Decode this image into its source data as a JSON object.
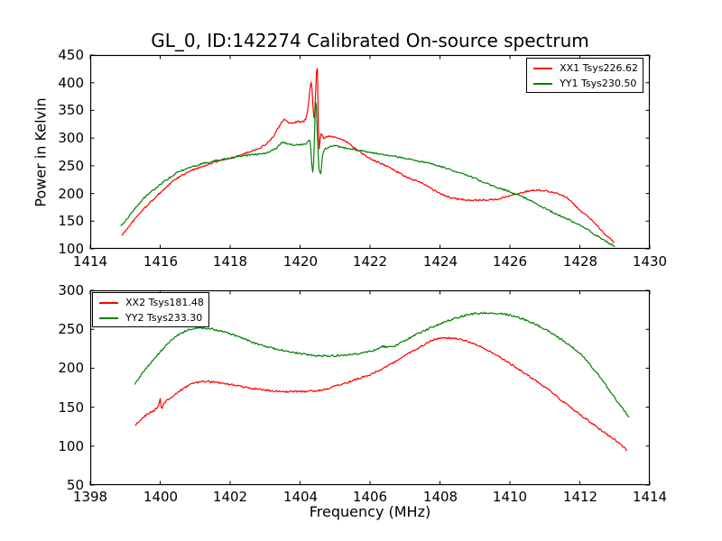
{
  "figure_title": "GL_0, ID:142274 Calibrated On-source spectrum",
  "axis": {
    "xlabel": "Frequency (MHz)",
    "ylabel": "Power in Kelvin"
  },
  "colors": {
    "xx_line": "#ff0000",
    "yy_line": "#008000",
    "axis_color": "#000000",
    "background": "#ffffff"
  },
  "chart_data": [
    {
      "type": "line",
      "subplot": "top",
      "xlim": [
        1414,
        1430
      ],
      "ylim": [
        100,
        450
      ],
      "xticks": [
        1414,
        1416,
        1418,
        1420,
        1422,
        1424,
        1426,
        1428,
        1430
      ],
      "yticks": [
        100,
        150,
        200,
        250,
        300,
        350,
        400,
        450
      ],
      "grid": false,
      "legend": {
        "position": "upper-right",
        "entries": [
          {
            "label": "XX1 Tsys226.62",
            "series": "XX1",
            "tsys": 226.62,
            "color": "#ff0000"
          },
          {
            "label": "YY1 Tsys230.50",
            "series": "YY1",
            "tsys": 230.5,
            "color": "#008000"
          }
        ]
      },
      "series": [
        {
          "name": "XX1",
          "color": "#ff0000",
          "points": [
            [
              1414.9,
              124
            ],
            [
              1415.2,
              148
            ],
            [
              1415.5,
              170
            ],
            [
              1415.8,
              189
            ],
            [
              1416.1,
              207
            ],
            [
              1416.5,
              228
            ],
            [
              1417.0,
              244
            ],
            [
              1417.5,
              255
            ],
            [
              1417.8,
              261
            ],
            [
              1418.0,
              264
            ],
            [
              1418.5,
              274
            ],
            [
              1419.0,
              288
            ],
            [
              1419.25,
              304
            ],
            [
              1419.45,
              326
            ],
            [
              1419.55,
              333
            ],
            [
              1419.65,
              329
            ],
            [
              1419.78,
              326
            ],
            [
              1419.92,
              330
            ],
            [
              1420.05,
              329
            ],
            [
              1420.15,
              333
            ],
            [
              1420.22,
              352
            ],
            [
              1420.32,
              400
            ],
            [
              1420.4,
              335
            ],
            [
              1420.49,
              433
            ],
            [
              1420.54,
              278
            ],
            [
              1420.6,
              308
            ],
            [
              1420.68,
              300
            ],
            [
              1420.82,
              303
            ],
            [
              1421.0,
              302
            ],
            [
              1421.3,
              294
            ],
            [
              1421.7,
              275
            ],
            [
              1422.0,
              263
            ],
            [
              1422.5,
              249
            ],
            [
              1423.0,
              231
            ],
            [
              1423.5,
              218
            ],
            [
              1424.0,
              200
            ],
            [
              1424.5,
              190
            ],
            [
              1425.0,
              188
            ],
            [
              1425.5,
              189
            ],
            [
              1426.0,
              196
            ],
            [
              1426.4,
              203
            ],
            [
              1426.8,
              206
            ],
            [
              1427.1,
              204
            ],
            [
              1427.5,
              197
            ],
            [
              1428.0,
              170
            ],
            [
              1428.4,
              148
            ],
            [
              1428.7,
              128
            ],
            [
              1428.98,
              112
            ]
          ]
        },
        {
          "name": "YY1",
          "color": "#008000",
          "points": [
            [
              1414.87,
              140
            ],
            [
              1415.2,
              166
            ],
            [
              1415.5,
              189
            ],
            [
              1415.8,
              206
            ],
            [
              1416.1,
              221
            ],
            [
              1416.5,
              238
            ],
            [
              1417.0,
              250
            ],
            [
              1417.5,
              258
            ],
            [
              1418.0,
              264
            ],
            [
              1418.5,
              269
            ],
            [
              1419.0,
              273
            ],
            [
              1419.3,
              281
            ],
            [
              1419.5,
              292
            ],
            [
              1419.65,
              290
            ],
            [
              1419.8,
              288
            ],
            [
              1420.0,
              288
            ],
            [
              1420.18,
              290
            ],
            [
              1420.28,
              296
            ],
            [
              1420.34,
              250
            ],
            [
              1420.37,
              238
            ],
            [
              1420.41,
              300
            ],
            [
              1420.45,
              376
            ],
            [
              1420.49,
              310
            ],
            [
              1420.55,
              241
            ],
            [
              1420.59,
              236
            ],
            [
              1420.65,
              272
            ],
            [
              1420.78,
              283
            ],
            [
              1420.95,
              286
            ],
            [
              1421.2,
              283
            ],
            [
              1421.6,
              279
            ],
            [
              1422.0,
              274
            ],
            [
              1422.5,
              269
            ],
            [
              1423.0,
              264
            ],
            [
              1423.5,
              257
            ],
            [
              1424.0,
              249
            ],
            [
              1424.5,
              239
            ],
            [
              1425.0,
              227
            ],
            [
              1425.5,
              214
            ],
            [
              1426.0,
              203
            ],
            [
              1426.5,
              190
            ],
            [
              1427.0,
              173
            ],
            [
              1427.5,
              158
            ],
            [
              1428.0,
              143
            ],
            [
              1428.5,
              123
            ],
            [
              1429.0,
              104
            ]
          ]
        }
      ]
    },
    {
      "type": "line",
      "subplot": "bottom",
      "xlim": [
        1398,
        1414
      ],
      "ylim": [
        50,
        300
      ],
      "xticks": [
        1398,
        1400,
        1402,
        1404,
        1406,
        1408,
        1410,
        1412,
        1414
      ],
      "yticks": [
        50,
        100,
        150,
        200,
        250,
        300
      ],
      "grid": false,
      "legend": {
        "position": "upper-left",
        "entries": [
          {
            "label": "XX2 Tsys181.48",
            "series": "XX2",
            "tsys": 181.48,
            "color": "#ff0000"
          },
          {
            "label": "YY2 Tsys233.30",
            "series": "YY2",
            "tsys": 233.3,
            "color": "#008000"
          }
        ]
      },
      "series": [
        {
          "name": "XX2",
          "color": "#ff0000",
          "points": [
            [
              1399.28,
              127
            ],
            [
              1399.6,
              140
            ],
            [
              1399.94,
              151
            ],
            [
              1400.0,
              160
            ],
            [
              1400.04,
              147
            ],
            [
              1400.1,
              155
            ],
            [
              1400.4,
              165
            ],
            [
              1400.7,
              175
            ],
            [
              1401.0,
              181
            ],
            [
              1401.3,
              183
            ],
            [
              1401.6,
              182
            ],
            [
              1402.0,
              179
            ],
            [
              1402.5,
              175
            ],
            [
              1403.0,
              172
            ],
            [
              1403.5,
              170
            ],
            [
              1404.0,
              170
            ],
            [
              1404.5,
              171
            ],
            [
              1405.0,
              177
            ],
            [
              1405.5,
              184
            ],
            [
              1406.0,
              192
            ],
            [
              1406.5,
              203
            ],
            [
              1407.0,
              216
            ],
            [
              1407.5,
              229
            ],
            [
              1407.8,
              236
            ],
            [
              1408.1,
              239
            ],
            [
              1408.4,
              238
            ],
            [
              1408.7,
              236
            ],
            [
              1409.0,
              231
            ],
            [
              1409.5,
              220
            ],
            [
              1410.0,
              206
            ],
            [
              1410.5,
              191
            ],
            [
              1411.0,
              176
            ],
            [
              1411.5,
              158
            ],
            [
              1412.0,
              141
            ],
            [
              1412.5,
              124
            ],
            [
              1413.0,
              108
            ],
            [
              1413.35,
              95
            ]
          ]
        },
        {
          "name": "YY2",
          "color": "#008000",
          "points": [
            [
              1399.28,
              180
            ],
            [
              1399.6,
              200
            ],
            [
              1400.0,
              221
            ],
            [
              1400.4,
              239
            ],
            [
              1400.8,
              249
            ],
            [
              1401.1,
              252
            ],
            [
              1401.4,
              251
            ],
            [
              1401.8,
              247
            ],
            [
              1402.2,
              241
            ],
            [
              1402.6,
              234
            ],
            [
              1403.0,
              228
            ],
            [
              1403.5,
              223
            ],
            [
              1404.0,
              219
            ],
            [
              1404.5,
              216
            ],
            [
              1404.9,
              216
            ],
            [
              1405.3,
              217
            ],
            [
              1405.8,
              220
            ],
            [
              1406.2,
              224
            ],
            [
              1406.35,
              228
            ],
            [
              1406.55,
              227
            ],
            [
              1407.0,
              236
            ],
            [
              1407.5,
              247
            ],
            [
              1408.0,
              257
            ],
            [
              1408.5,
              265
            ],
            [
              1409.0,
              270
            ],
            [
              1409.3,
              271
            ],
            [
              1409.7,
              270
            ],
            [
              1410.0,
              268
            ],
            [
              1410.5,
              261
            ],
            [
              1411.0,
              250
            ],
            [
              1411.5,
              236
            ],
            [
              1412.0,
              219
            ],
            [
              1412.5,
              193
            ],
            [
              1413.0,
              162
            ],
            [
              1413.42,
              137
            ]
          ]
        }
      ]
    }
  ]
}
